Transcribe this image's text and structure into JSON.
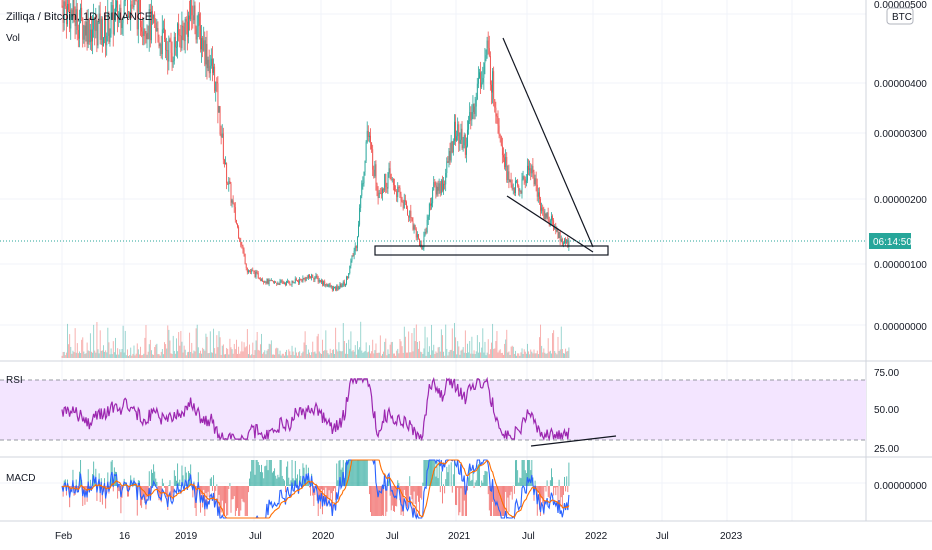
{
  "header": {
    "symbol": "Zilliqa / Bitcoin, 1D, BINANCE",
    "volume_label": "Vol",
    "currency_badge": "BTC"
  },
  "price_axis": {
    "ticks": [
      "0.00000100",
      "0.00000200",
      "0.00000300",
      "0.00000400",
      "0.00000000"
    ],
    "top_partial": "0.00000500",
    "countdown": "06:14:50",
    "countdown_color": "#26a69a"
  },
  "rsi_panel": {
    "label": "RSI",
    "ticks": [
      "75.00",
      "50.00",
      "25.00"
    ],
    "line_color": "#9c27b0",
    "band_color": "#f3e5ff"
  },
  "macd_panel": {
    "label": "MACD",
    "tick": "0.00000000",
    "macd_color": "#2962ff",
    "signal_color": "#ff6d00"
  },
  "time_axis": {
    "labels": [
      "Feb",
      "16",
      "2019",
      "Jul",
      "2020",
      "Jul",
      "2021",
      "Jul",
      "2022",
      "Jul",
      "2023"
    ]
  },
  "colors": {
    "up": "#26a69a",
    "down": "#ef5350",
    "grid": "#f0f3fa",
    "last_price_line": "#26a69a",
    "drawing": "#131722"
  },
  "chart_data": {
    "type": "candlestick",
    "title": "Zilliqa / Bitcoin, 1D, BINANCE",
    "y_unit": "BTC",
    "ylim": [
      0.0,
      5e-06
    ],
    "x_range": [
      "2018-02",
      "2023-06"
    ],
    "close_series": [
      [
        "2018-02",
        4.9e-06
      ],
      [
        "2018-04",
        4.6e-06
      ],
      [
        "2018-06",
        4.5e-06
      ],
      [
        "2018-08",
        5e-06
      ],
      [
        "2018-10",
        4.6e-06
      ],
      [
        "2018-12",
        4.2e-06
      ],
      [
        "2019-02",
        4.8e-06
      ],
      [
        "2019-04",
        3.8e-06
      ],
      [
        "2019-05",
        2.4e-06
      ],
      [
        "2019-06",
        1.6e-06
      ],
      [
        "2019-07",
        9e-07
      ],
      [
        "2019-09",
        7e-07
      ],
      [
        "2019-11",
        7e-07
      ],
      [
        "2020-01",
        8e-07
      ],
      [
        "2020-03",
        6e-07
      ],
      [
        "2020-04",
        7e-07
      ],
      [
        "2020-05",
        1.3e-06
      ],
      [
        "2020-06",
        3e-06
      ],
      [
        "2020-07",
        2.1e-06
      ],
      [
        "2020-08",
        2.3e-06
      ],
      [
        "2020-10",
        1.7e-06
      ],
      [
        "2020-11",
        1.2e-06
      ],
      [
        "2020-12",
        2.1e-06
      ],
      [
        "2021-01",
        2.2e-06
      ],
      [
        "2021-02",
        3e-06
      ],
      [
        "2021-03",
        2.8e-06
      ],
      [
        "2021-04",
        3.6e-06
      ],
      [
        "2021-05",
        4.2e-06
      ],
      [
        "2021-06",
        3.2e-06
      ],
      [
        "2021-07",
        2.2e-06
      ],
      [
        "2021-08",
        2.1e-06
      ],
      [
        "2021-09",
        2.5e-06
      ],
      [
        "2021-10",
        1.8e-06
      ],
      [
        "2021-11",
        1.6e-06
      ],
      [
        "2021-12",
        1.3e-06
      ]
    ],
    "last_price": 1.22e-06,
    "rsi": {
      "ylim": [
        0,
        100
      ],
      "upper": 70,
      "lower": 30
    },
    "macd": {
      "zero": 0.0
    }
  }
}
